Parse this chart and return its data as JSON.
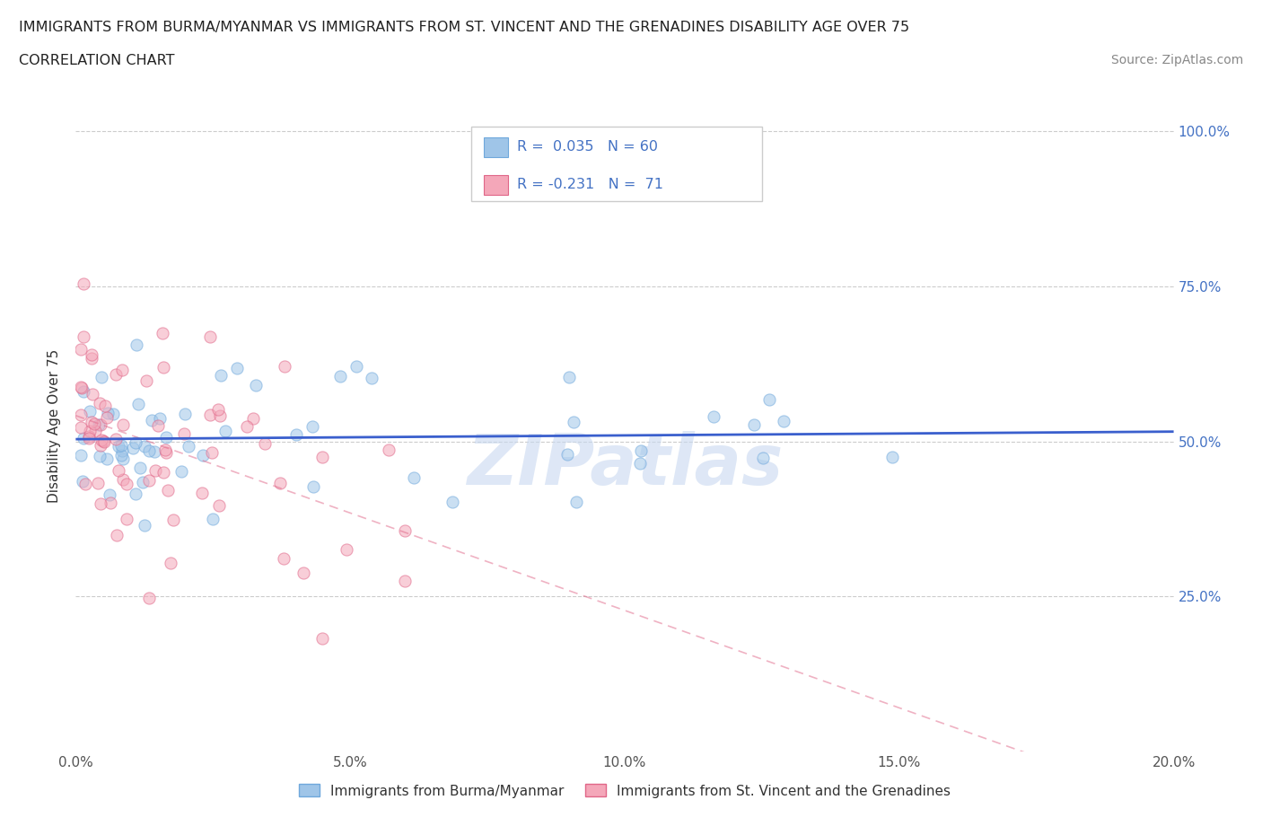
{
  "title_line1": "IMMIGRANTS FROM BURMA/MYANMAR VS IMMIGRANTS FROM ST. VINCENT AND THE GRENADINES DISABILITY AGE OVER 75",
  "title_line2": "CORRELATION CHART",
  "source": "Source: ZipAtlas.com",
  "ylabel": "Disability Age Over 75",
  "xlim": [
    0.0,
    0.2
  ],
  "ylim": [
    0.0,
    1.05
  ],
  "right_ytick_color": "#4472c4",
  "grid_color": "#cccccc",
  "watermark": "ZIPatlas",
  "series1_label": "Immigrants from Burma/Myanmar",
  "series1_color": "#9fc5e8",
  "series1_edge_color": "#6fa8dc",
  "series1_R": 0.035,
  "series1_N": 60,
  "series1_line_color": "#3a5fcd",
  "series2_label": "Immigrants from St. Vincent and the Grenadines",
  "series2_color": "#f4a7b9",
  "series2_edge_color": "#e06688",
  "series2_R": -0.231,
  "series2_N": 71,
  "series2_line_color": "#e06688",
  "legend_color": "#4472c4",
  "scatter_alpha": 0.55,
  "marker_size": 90
}
